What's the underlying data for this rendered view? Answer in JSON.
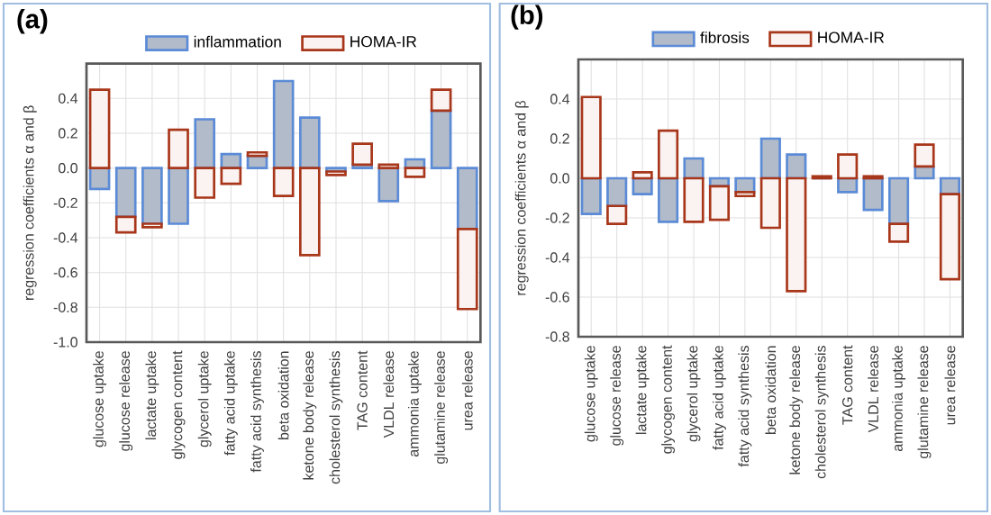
{
  "chart_data": [
    {
      "type": "bar",
      "title": "(a)",
      "ylabel": "regression coefficients α and β",
      "stacked": true,
      "grid": true,
      "legend": "top",
      "categories": [
        "glucose uptake",
        "glucose release",
        "lactate uptake",
        "glycogen content",
        "glycerol uptake",
        "fatty acid uptake",
        "fatty acid synthesis",
        "beta oxidation",
        "ketone body release",
        "cholesterol synthesis",
        "TAG content",
        "VLDL release",
        "ammonia uptake",
        "glutamine release",
        "urea release"
      ],
      "series": [
        {
          "name": "inflammation",
          "color": "#5b8bd6",
          "values": [
            -0.12,
            -0.28,
            -0.32,
            -0.32,
            0.28,
            0.08,
            0.07,
            0.5,
            0.29,
            -0.02,
            0.02,
            -0.19,
            0.05,
            0.33,
            -0.35
          ]
        },
        {
          "name": "HOMA-IR",
          "color": "#a8361a",
          "values": [
            0.45,
            -0.09,
            -0.02,
            0.22,
            -0.17,
            -0.09,
            0.02,
            -0.16,
            -0.5,
            -0.02,
            0.12,
            0.02,
            -0.05,
            0.12,
            -0.46
          ]
        }
      ],
      "ylim": [
        -1.0,
        0.6
      ],
      "yticks": [
        {
          "value": -1.0,
          "label": "-1.0"
        },
        {
          "value": -0.8,
          "label": "-0.8"
        },
        {
          "value": -0.6,
          "label": "-0.6"
        },
        {
          "value": -0.4,
          "label": "-0.4"
        },
        {
          "value": -0.2,
          "label": "-0.2"
        },
        {
          "value": 0,
          "label": "0.0"
        },
        {
          "value": 0.2,
          "label": "0.2"
        },
        {
          "value": 0.4,
          "label": "0.4"
        },
        {
          "value": 0.6,
          "label": null
        }
      ]
    },
    {
      "type": "bar",
      "title": "(b)",
      "ylabel": "regression coefficients α and β",
      "stacked": true,
      "grid": true,
      "legend": "top",
      "categories": [
        "glucose uptake",
        "glucose release",
        "lactate uptake",
        "glycogen content",
        "glycerol uptake",
        "fatty acid uptake",
        "fatty acid synthesis",
        "beta oxidation",
        "ketone body release",
        "cholesterol synthesis",
        "TAG content",
        "VLDL release",
        "ammonia uptake",
        "glutamine release",
        "urea release"
      ],
      "series": [
        {
          "name": "fibrosis",
          "color": "#5b8bd6",
          "values": [
            -0.18,
            -0.14,
            -0.08,
            -0.22,
            0.1,
            -0.04,
            -0.07,
            0.2,
            0.12,
            0.0,
            -0.07,
            -0.16,
            -0.23,
            0.06,
            -0.08
          ]
        },
        {
          "name": "HOMA-IR",
          "color": "#a8361a",
          "values": [
            0.41,
            -0.09,
            0.03,
            0.24,
            -0.22,
            -0.17,
            -0.02,
            -0.25,
            -0.57,
            0.01,
            0.12,
            0.01,
            -0.09,
            0.11,
            -0.43
          ]
        }
      ],
      "ylim": [
        -0.8,
        0.6
      ],
      "yticks": [
        {
          "value": -0.8,
          "label": "-0.8"
        },
        {
          "value": -0.6,
          "label": "-0.6"
        },
        {
          "value": -0.4,
          "label": "-0.4"
        },
        {
          "value": -0.2,
          "label": "-0.2"
        },
        {
          "value": 0,
          "label": "0.0"
        },
        {
          "value": 0.2,
          "label": "0.2"
        },
        {
          "value": 0.4,
          "label": "0.4"
        },
        {
          "value": 0.6,
          "label": null
        }
      ]
    }
  ]
}
